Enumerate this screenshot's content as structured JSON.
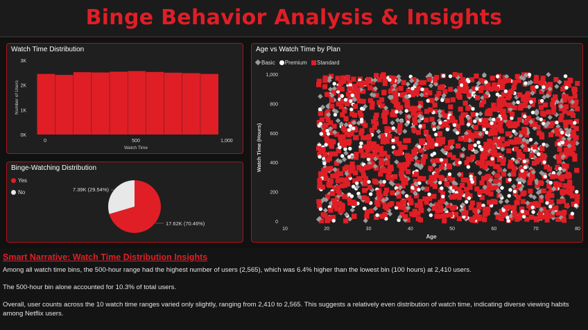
{
  "header": {
    "title": "Binge Behavior Analysis & Insights"
  },
  "colors": {
    "accent": "#e01e26",
    "panel_border": "#b01217",
    "basic": "#9a9a9a",
    "premium": "#ffffff",
    "standard": "#e01e26"
  },
  "watch_time_panel": {
    "title": "Watch Time Distribution",
    "chart_data": {
      "type": "bar",
      "xlabel": "Watch Time",
      "ylabel": "Number of Users",
      "x_ticks": [
        "0",
        "500",
        "1,000"
      ],
      "y_ticks": [
        "0K",
        "1K",
        "2K",
        "3K"
      ],
      "ylim": [
        0,
        3000
      ],
      "xlim": [
        -50,
        1050
      ],
      "categories": [
        0,
        100,
        200,
        300,
        400,
        500,
        600,
        700,
        800,
        900
      ],
      "values": [
        2450,
        2410,
        2520,
        2510,
        2540,
        2565,
        2530,
        2500,
        2480,
        2450
      ]
    }
  },
  "binge_panel": {
    "title": "Binge-Watching Distribution",
    "legend": [
      {
        "label": "Yes",
        "color": "#e01e26"
      },
      {
        "label": "No",
        "color": "#e8e8e8"
      }
    ],
    "chart_data": {
      "type": "pie",
      "slices": [
        {
          "label": "Yes",
          "value": 17620,
          "percent": 70.46,
          "text": "17.62K (70.46%)"
        },
        {
          "label": "No",
          "value": 7390,
          "percent": 29.54,
          "text": "7.39K (29.54%)"
        }
      ]
    }
  },
  "scatter_panel": {
    "title": "Age vs Watch Time by Plan",
    "legend": [
      {
        "label": "Basic"
      },
      {
        "label": "Premium"
      },
      {
        "label": "Standard"
      }
    ],
    "chart_data": {
      "type": "scatter",
      "xlabel": "Age",
      "ylabel": "Watch Time (Hours)",
      "xlim": [
        10,
        80
      ],
      "ylim": [
        0,
        1000
      ],
      "x_ticks": [
        "10",
        "20",
        "30",
        "40",
        "50",
        "60",
        "70",
        "80"
      ],
      "y_ticks": [
        "0",
        "200",
        "400",
        "600",
        "800",
        "1,000"
      ],
      "series": [
        {
          "name": "Basic"
        },
        {
          "name": "Premium"
        },
        {
          "name": "Standard"
        }
      ],
      "point_range": {
        "x": [
          18,
          80
        ],
        "y": [
          0,
          1000
        ]
      }
    }
  },
  "narrative": {
    "title": "Smart Narrative: Watch Time Distribution Insights",
    "p1": "Among all watch time bins, the 500-hour range had the highest number of users (2,565), which was 6.4% higher than the lowest bin (100 hours) at 2,410 users.",
    "p2": "The 500-hour bin alone accounted for 10.3% of total users.",
    "p3": "Overall, user counts across the 10 watch time ranges varied only slightly, ranging from 2,410 to 2,565. This suggests a relatively even distribution of watch time, indicating diverse viewing habits among Netflix users."
  }
}
